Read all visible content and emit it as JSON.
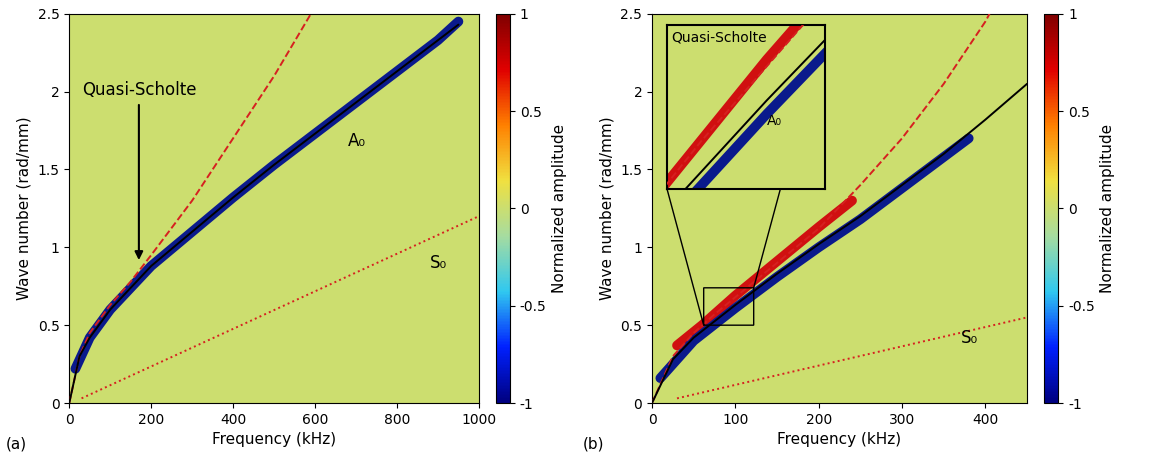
{
  "chart_data": [
    {
      "type": "line",
      "title": "(a)",
      "x_label": "Frequency (kHz)",
      "y_label": "Wave number (rad/mm)",
      "xlim": [
        0,
        1000
      ],
      "xticks": [
        0,
        200,
        400,
        600,
        800,
        1000
      ],
      "ylim": [
        0,
        2.5
      ],
      "yticks": [
        0,
        0.5,
        1,
        1.5,
        2,
        2.5
      ],
      "series": [
        {
          "type": "band",
          "color": "#0a1a8c",
          "line_style": "solid",
          "x": [
            15,
            50,
            100,
            200,
            300,
            400,
            500,
            600,
            700,
            800,
            900,
            950
          ],
          "values": [
            0.22,
            0.42,
            0.6,
            0.88,
            1.1,
            1.32,
            1.53,
            1.73,
            1.93,
            2.13,
            2.33,
            2.45
          ]
        },
        {
          "type": "line",
          "color": "#d62020",
          "line_style": "dashed",
          "x": [
            0,
            25,
            50,
            100,
            150,
            200,
            300,
            400,
            500,
            590
          ],
          "values": [
            0,
            0.3,
            0.45,
            0.63,
            0.78,
            0.95,
            1.3,
            1.7,
            2.1,
            2.5
          ]
        },
        {
          "type": "line",
          "color": "#000000",
          "line_style": "solid",
          "x": [
            0,
            25,
            50,
            100,
            150,
            200,
            300,
            400,
            500,
            600,
            700,
            800,
            900,
            950
          ],
          "values": [
            0,
            0.3,
            0.42,
            0.6,
            0.74,
            0.88,
            1.1,
            1.32,
            1.53,
            1.73,
            1.93,
            2.13,
            2.33,
            2.43
          ]
        },
        {
          "type": "line",
          "color": "#d62020",
          "line_style": "dotted",
          "x": [
            30,
            1000
          ],
          "values": [
            0.03,
            1.2
          ]
        }
      ],
      "annotations": [
        {
          "text": "Quasi-Scholte",
          "x": 170,
          "y": 1.95,
          "arrow_to": [
            170,
            0.9
          ]
        },
        {
          "text": "A₀",
          "x": 680,
          "y": 1.68
        },
        {
          "text": "S₀",
          "x": 880,
          "y": 0.9
        }
      ],
      "colorbar": {
        "label": "Normalized amplitude",
        "range": [
          -1,
          1
        ],
        "ticks": [
          -1,
          -0.5,
          0,
          0.5,
          1
        ]
      }
    },
    {
      "type": "line",
      "title": "(b)",
      "x_label": "Frequency (kHz)",
      "y_label": "Wave number (rad/mm)",
      "xlim": [
        0,
        450
      ],
      "xticks": [
        0,
        100,
        200,
        300,
        400
      ],
      "ylim": [
        0,
        2.5
      ],
      "yticks": [
        0,
        0.5,
        1,
        1.5,
        2,
        2.5
      ],
      "series": [
        {
          "type": "band",
          "color": "#d01010",
          "line_style": "solid",
          "x": [
            30,
            60,
            100,
            150,
            200,
            240
          ],
          "values": [
            0.37,
            0.5,
            0.69,
            0.91,
            1.13,
            1.3
          ]
        },
        {
          "type": "band",
          "color": "#0a1a8c",
          "line_style": "solid",
          "x": [
            10,
            50,
            100,
            150,
            200,
            250,
            300,
            350,
            380
          ],
          "values": [
            0.16,
            0.4,
            0.61,
            0.81,
            1.0,
            1.18,
            1.38,
            1.58,
            1.7
          ]
        },
        {
          "type": "line",
          "color": "#d62020",
          "line_style": "dashed",
          "x": [
            0,
            25,
            50,
            75,
            100,
            150,
            200,
            250,
            300,
            350,
            400,
            405
          ],
          "values": [
            0,
            0.3,
            0.45,
            0.57,
            0.68,
            0.9,
            1.12,
            1.4,
            1.7,
            2.05,
            2.45,
            2.5
          ]
        },
        {
          "type": "line",
          "color": "#000000",
          "line_style": "solid",
          "x": [
            0,
            25,
            50,
            100,
            150,
            200,
            250,
            300,
            350,
            400,
            450
          ],
          "values": [
            0,
            0.28,
            0.42,
            0.63,
            0.83,
            1.02,
            1.2,
            1.4,
            1.6,
            1.82,
            2.05
          ]
        },
        {
          "type": "line",
          "color": "#d62020",
          "line_style": "dotted",
          "x": [
            30,
            450
          ],
          "values": [
            0.03,
            0.55
          ]
        }
      ],
      "annotations": [
        {
          "text": "S₀",
          "x": 370,
          "y": 0.42
        }
      ],
      "inset": {
        "xlim": [
          62,
          122
        ],
        "ylim": [
          0.5,
          0.74
        ],
        "annotations": [
          {
            "text": "Quasi-Scholte",
            "x": 63.5,
            "y": 0.722
          },
          {
            "text": "A₀",
            "x": 100,
            "y": 0.6
          }
        ]
      },
      "colorbar": {
        "label": "Normalized amplitude",
        "range": [
          -1,
          1
        ],
        "ticks": [
          -1,
          -0.5,
          0,
          0.5,
          1
        ]
      }
    }
  ]
}
